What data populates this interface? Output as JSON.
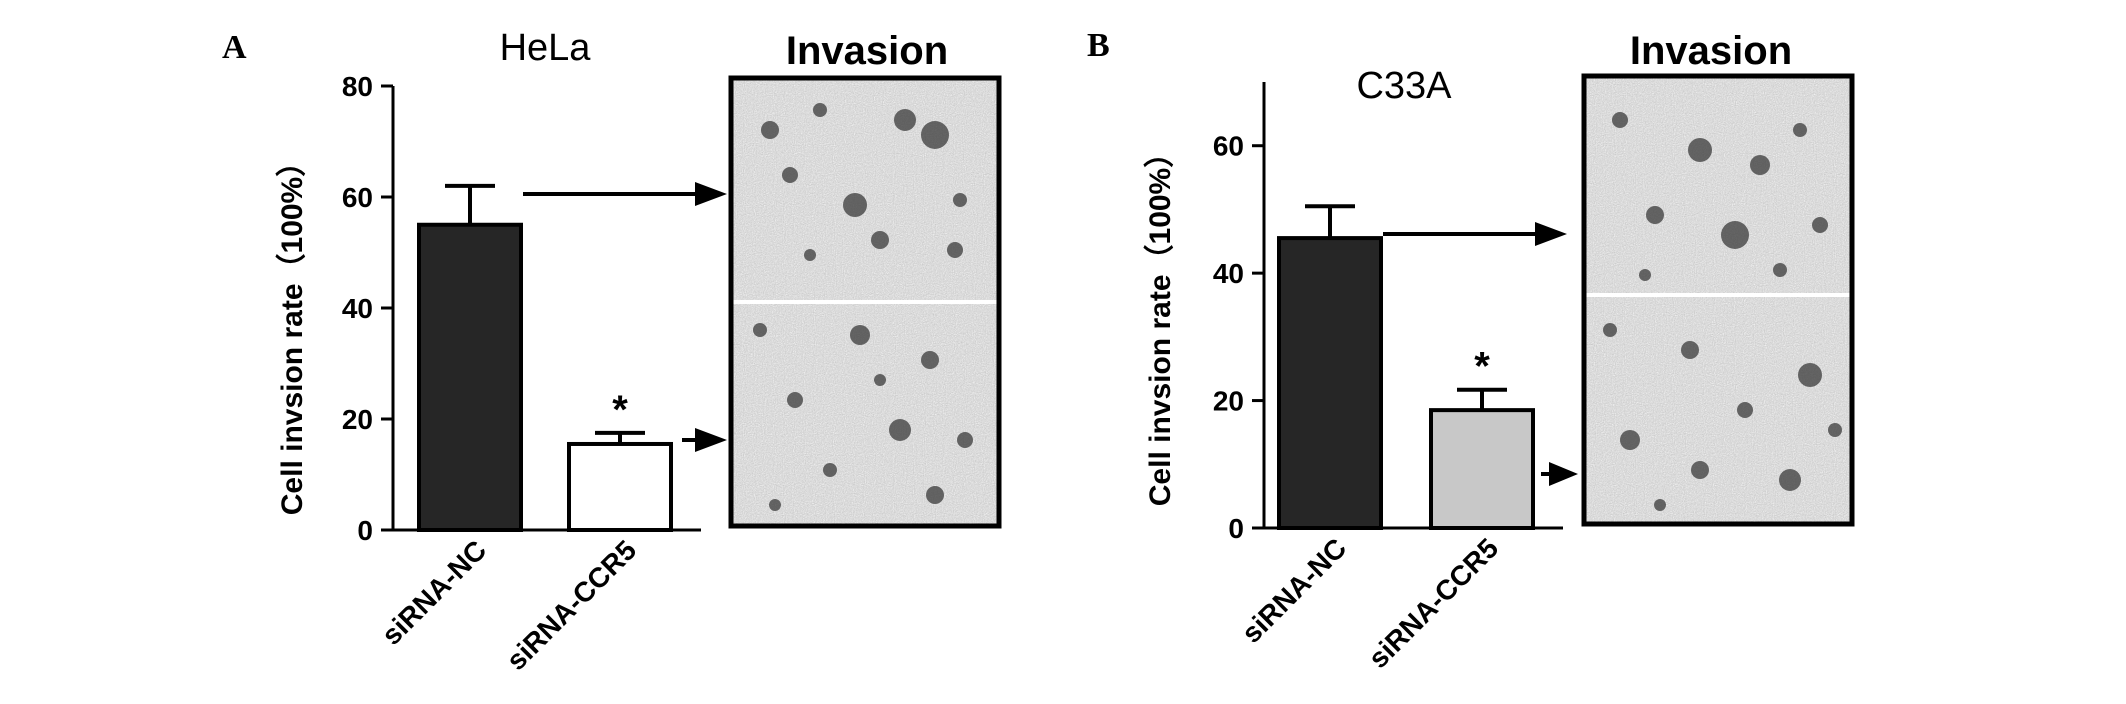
{
  "colors": {
    "nc_fill": "#262626",
    "hela_ccr5_fill": "#ffffff",
    "c33a_ccr5_fill": "#c8c8c8",
    "axis": "#000000"
  },
  "chart_data": [
    {
      "type": "bar",
      "panel_label": "A",
      "title": "HeLa",
      "image_title": "Invasion",
      "ylabel": "Cell invsion rate（100%）",
      "xlabel": "",
      "categories": [
        "siRNA-NC",
        "siRNA-CCR5"
      ],
      "values": [
        55,
        15.5
      ],
      "errors": [
        7,
        2
      ],
      "significance": [
        "",
        "*"
      ],
      "ylim": [
        0,
        80
      ],
      "yticks": [
        0,
        20,
        40,
        60,
        80
      ],
      "grid": false,
      "bar_colors": [
        "#262626",
        "#ffffff"
      ]
    },
    {
      "type": "bar",
      "panel_label": "B",
      "title": "C33A",
      "image_title": "Invasion",
      "ylabel": "Cell invsion rate（100%）",
      "xlabel": "",
      "categories": [
        "siRNA-NC",
        "siRNA-CCR5"
      ],
      "values": [
        45.5,
        18.5
      ],
      "errors": [
        5,
        3.2
      ],
      "significance": [
        "",
        "*"
      ],
      "ylim": [
        0,
        70
      ],
      "yticks": [
        0,
        20,
        40,
        60
      ],
      "grid": false,
      "bar_colors": [
        "#262626",
        "#c8c8c8"
      ]
    }
  ]
}
